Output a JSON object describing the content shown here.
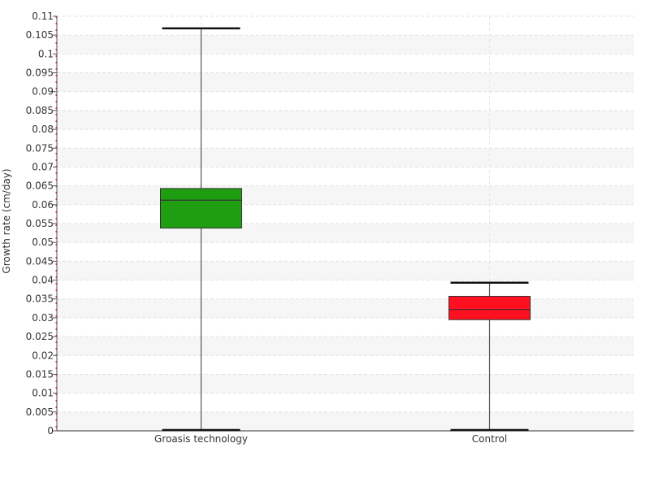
{
  "chart_data": {
    "type": "box",
    "title": "",
    "xlabel": "",
    "ylabel": "Growth rate (cm/day)",
    "ylim": [
      0,
      0.11
    ],
    "ytick_step": 0.005,
    "ytick_labels": [
      "0",
      "0.005",
      "0.01",
      "0.015",
      "0.02",
      "0.025",
      "0.03",
      "0.035",
      "0.04",
      "0.045",
      "0.05",
      "0.055",
      "0.06",
      "0.065",
      "0.07",
      "0.075",
      "0.08",
      "0.085",
      "0.09",
      "0.095",
      "0.1",
      "0.105",
      "0.11"
    ],
    "grid": true,
    "categories": [
      "Groasis technology",
      "Control"
    ],
    "series": [
      {
        "category": "Groasis technology",
        "min": 0.0,
        "q1": 0.0538,
        "median": 0.0612,
        "q3": 0.0643,
        "max": 0.1068,
        "color": "#1e9e10"
      },
      {
        "category": "Control",
        "min": 0.0,
        "q1": 0.0295,
        "median": 0.0322,
        "q3": 0.0357,
        "max": 0.0393,
        "color": "#ff1020"
      }
    ]
  }
}
